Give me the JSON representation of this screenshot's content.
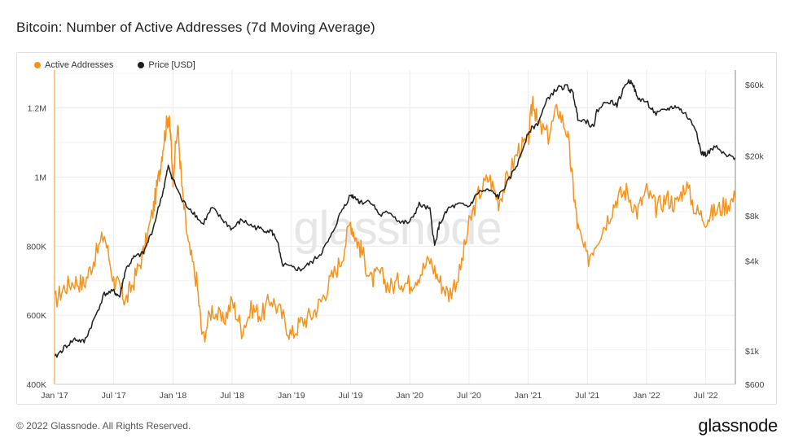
{
  "header": {
    "title": "Bitcoin: Number of Active Addresses (7d Moving Average)"
  },
  "footer": {
    "copyright": "© 2022 Glassnode. All Rights Reserved.",
    "brand": "glassnode"
  },
  "watermark": "glassnode",
  "colors": {
    "addresses": "#f7931a",
    "price": "#1e1e1e",
    "grid": "#ececec"
  },
  "chart_data": {
    "type": "line",
    "title": "Bitcoin: Number of Active Addresses (7d Moving Average)",
    "legend_position": "top-left",
    "grid": true,
    "x_ticks": [
      "Jan '17",
      "Jul '17",
      "Jan '18",
      "Jul '18",
      "Jan '19",
      "Jul '19",
      "Jan '20",
      "Jul '20",
      "Jan '21",
      "Jul '21",
      "Jan '22",
      "Jul '22"
    ],
    "x_range": [
      2017.0,
      2022.75
    ],
    "y_left": {
      "ticks": [
        "400K",
        "600K",
        "800K",
        "1M",
        "1.2M"
      ],
      "tick_values": [
        400000,
        600000,
        800000,
        1000000,
        1200000
      ],
      "range": [
        400000,
        1310000
      ],
      "scale": "linear"
    },
    "y_right": {
      "ticks": [
        "$600",
        "$1k",
        "$4k",
        "$8k",
        "$20k",
        "$60k"
      ],
      "tick_values": [
        600,
        1000,
        4000,
        8000,
        20000,
        60000
      ],
      "range": [
        600,
        75000
      ],
      "scale": "log"
    },
    "series": [
      {
        "name": "Active Addresses",
        "axis": "left",
        "points": [
          [
            2017.0,
            640000
          ],
          [
            2017.08,
            680000
          ],
          [
            2017.17,
            700000
          ],
          [
            2017.25,
            690000
          ],
          [
            2017.33,
            760000
          ],
          [
            2017.42,
            835000
          ],
          [
            2017.5,
            700000
          ],
          [
            2017.55,
            680000
          ],
          [
            2017.6,
            640000
          ],
          [
            2017.67,
            700000
          ],
          [
            2017.75,
            780000
          ],
          [
            2017.83,
            900000
          ],
          [
            2017.88,
            1000000
          ],
          [
            2017.92,
            1100000
          ],
          [
            2017.96,
            1180000
          ],
          [
            2017.98,
            1120000
          ],
          [
            2018.0,
            1000000
          ],
          [
            2018.04,
            1150000
          ],
          [
            2018.08,
            950000
          ],
          [
            2018.13,
            800000
          ],
          [
            2018.2,
            700000
          ],
          [
            2018.25,
            530000
          ],
          [
            2018.33,
            620000
          ],
          [
            2018.42,
            580000
          ],
          [
            2018.5,
            640000
          ],
          [
            2018.58,
            560000
          ],
          [
            2018.67,
            620000
          ],
          [
            2018.75,
            600000
          ],
          [
            2018.83,
            650000
          ],
          [
            2018.92,
            600000
          ],
          [
            2019.0,
            540000
          ],
          [
            2019.08,
            580000
          ],
          [
            2019.17,
            600000
          ],
          [
            2019.25,
            640000
          ],
          [
            2019.33,
            700000
          ],
          [
            2019.42,
            760000
          ],
          [
            2019.5,
            870000
          ],
          [
            2019.55,
            820000
          ],
          [
            2019.6,
            780000
          ],
          [
            2019.67,
            700000
          ],
          [
            2019.75,
            720000
          ],
          [
            2019.83,
            680000
          ],
          [
            2019.92,
            700000
          ],
          [
            2020.0,
            690000
          ],
          [
            2020.08,
            720000
          ],
          [
            2020.17,
            760000
          ],
          [
            2020.25,
            700000
          ],
          [
            2020.33,
            660000
          ],
          [
            2020.42,
            720000
          ],
          [
            2020.5,
            860000
          ],
          [
            2020.58,
            950000
          ],
          [
            2020.67,
            1000000
          ],
          [
            2020.75,
            930000
          ],
          [
            2020.83,
            1000000
          ],
          [
            2020.92,
            1080000
          ],
          [
            2021.0,
            1100000
          ],
          [
            2021.04,
            1230000
          ],
          [
            2021.08,
            1150000
          ],
          [
            2021.17,
            1120000
          ],
          [
            2021.25,
            1200000
          ],
          [
            2021.33,
            1130000
          ],
          [
            2021.38,
            970000
          ],
          [
            2021.42,
            850000
          ],
          [
            2021.5,
            760000
          ],
          [
            2021.58,
            820000
          ],
          [
            2021.67,
            880000
          ],
          [
            2021.75,
            940000
          ],
          [
            2021.83,
            960000
          ],
          [
            2021.92,
            900000
          ],
          [
            2022.0,
            960000
          ],
          [
            2022.08,
            910000
          ],
          [
            2022.17,
            940000
          ],
          [
            2022.25,
            920000
          ],
          [
            2022.33,
            980000
          ],
          [
            2022.42,
            900000
          ],
          [
            2022.5,
            880000
          ],
          [
            2022.58,
            900000
          ],
          [
            2022.67,
            920000
          ],
          [
            2022.75,
            940000
          ]
        ]
      },
      {
        "name": "Price [USD]",
        "axis": "right",
        "points": [
          [
            2017.0,
            900
          ],
          [
            2017.08,
            1050
          ],
          [
            2017.17,
            1200
          ],
          [
            2017.25,
            1150
          ],
          [
            2017.33,
            1600
          ],
          [
            2017.42,
            2400
          ],
          [
            2017.5,
            2500
          ],
          [
            2017.55,
            2300
          ],
          [
            2017.6,
            3500
          ],
          [
            2017.67,
            4200
          ],
          [
            2017.75,
            4500
          ],
          [
            2017.83,
            6500
          ],
          [
            2017.92,
            12000
          ],
          [
            2017.96,
            17000
          ],
          [
            2018.0,
            14000
          ],
          [
            2018.08,
            10000
          ],
          [
            2018.17,
            8500
          ],
          [
            2018.25,
            7000
          ],
          [
            2018.33,
            9000
          ],
          [
            2018.42,
            7500
          ],
          [
            2018.5,
            6500
          ],
          [
            2018.58,
            7500
          ],
          [
            2018.67,
            6800
          ],
          [
            2018.75,
            6500
          ],
          [
            2018.83,
            6300
          ],
          [
            2018.88,
            5500
          ],
          [
            2018.92,
            3800
          ],
          [
            2019.0,
            3600
          ],
          [
            2019.08,
            3500
          ],
          [
            2019.17,
            3900
          ],
          [
            2019.25,
            4500
          ],
          [
            2019.33,
            5700
          ],
          [
            2019.42,
            8500
          ],
          [
            2019.5,
            11000
          ],
          [
            2019.55,
            10500
          ],
          [
            2019.58,
            9800
          ],
          [
            2019.67,
            10000
          ],
          [
            2019.75,
            8000
          ],
          [
            2019.83,
            8500
          ],
          [
            2019.92,
            7200
          ],
          [
            2020.0,
            7200
          ],
          [
            2020.08,
            9500
          ],
          [
            2020.17,
            8800
          ],
          [
            2020.21,
            5000
          ],
          [
            2020.25,
            7000
          ],
          [
            2020.33,
            9000
          ],
          [
            2020.42,
            9500
          ],
          [
            2020.5,
            9200
          ],
          [
            2020.58,
            11500
          ],
          [
            2020.67,
            11800
          ],
          [
            2020.75,
            10700
          ],
          [
            2020.83,
            13500
          ],
          [
            2020.92,
            18500
          ],
          [
            2021.0,
            29000
          ],
          [
            2021.08,
            33000
          ],
          [
            2021.17,
            49000
          ],
          [
            2021.25,
            57000
          ],
          [
            2021.33,
            58000
          ],
          [
            2021.38,
            52000
          ],
          [
            2021.42,
            36000
          ],
          [
            2021.5,
            34000
          ],
          [
            2021.55,
            31000
          ],
          [
            2021.58,
            40000
          ],
          [
            2021.67,
            47000
          ],
          [
            2021.75,
            44000
          ],
          [
            2021.83,
            62000
          ],
          [
            2021.88,
            63000
          ],
          [
            2021.92,
            49000
          ],
          [
            2022.0,
            46000
          ],
          [
            2022.08,
            38000
          ],
          [
            2022.17,
            41000
          ],
          [
            2022.25,
            43000
          ],
          [
            2022.33,
            38000
          ],
          [
            2022.42,
            30000
          ],
          [
            2022.46,
            21000
          ],
          [
            2022.5,
            20500
          ],
          [
            2022.58,
            23000
          ],
          [
            2022.67,
            20000
          ],
          [
            2022.75,
            19500
          ]
        ]
      }
    ]
  }
}
